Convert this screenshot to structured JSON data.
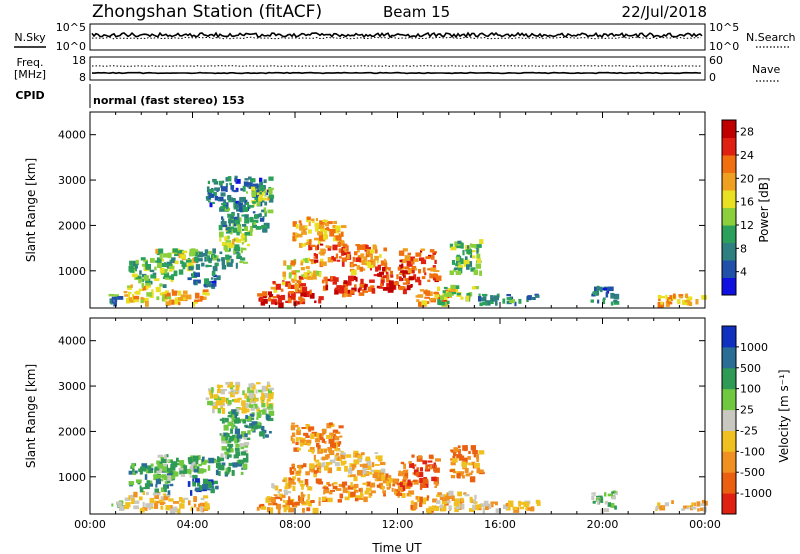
{
  "header": {
    "station": "Zhongshan Station (fitACF)",
    "beam": "Beam 15",
    "date": "22/Jul/2018",
    "cpid_label": "CPID",
    "cpid_text": "normal (fast stereo) 153"
  },
  "panels": {
    "nsky": {
      "label": "N.Sky",
      "ticks": [
        "10^5",
        "10^0"
      ]
    },
    "nsearch": {
      "label": "N.Search",
      "ticks": [
        "10^5",
        "10^0"
      ]
    },
    "freq": {
      "label": "Freq.",
      "unit": "[MHz]",
      "ticks": [
        "18",
        "8"
      ]
    },
    "nave": {
      "label": "Nave",
      "ticks": [
        "60",
        "0"
      ]
    }
  },
  "chart_data": [
    {
      "type": "heatmap",
      "name": "power",
      "xlabel": "",
      "ylabel": "Slant Range [km]",
      "xlim": [
        0,
        24
      ],
      "ylim": [
        180,
        4500
      ],
      "yticks": [
        1000,
        2000,
        3000,
        4000
      ],
      "colorbar": {
        "label": "Power [dB]",
        "ticks": [
          "4",
          "8",
          "12",
          "16",
          "20",
          "24",
          "28"
        ],
        "range": [
          0,
          30
        ]
      },
      "cells": [
        {
          "x0": 0.6,
          "x1": 1.3,
          "y0": 300,
          "y1": 500,
          "v": 8
        },
        {
          "x0": 1.3,
          "x1": 3.0,
          "y0": 300,
          "y1": 700,
          "v": 18
        },
        {
          "x0": 1.5,
          "x1": 3.2,
          "y0": 700,
          "y1": 1300,
          "v": 12
        },
        {
          "x0": 3.0,
          "x1": 4.5,
          "y0": 300,
          "y1": 600,
          "v": 20
        },
        {
          "x0": 2.5,
          "x1": 4.0,
          "y0": 1000,
          "y1": 1500,
          "v": 14
        },
        {
          "x0": 3.8,
          "x1": 5.0,
          "y0": 700,
          "y1": 1000,
          "v": 6
        },
        {
          "x0": 3.8,
          "x1": 6.0,
          "y0": 1100,
          "y1": 1500,
          "v": 10
        },
        {
          "x0": 5.0,
          "x1": 6.2,
          "y0": 1500,
          "y1": 2000,
          "v": 14
        },
        {
          "x0": 4.5,
          "x1": 7.0,
          "y0": 2500,
          "y1": 3100,
          "v": 6
        },
        {
          "x0": 6.0,
          "x1": 7.0,
          "y0": 2500,
          "y1": 2900,
          "v": 14
        },
        {
          "x0": 5.0,
          "x1": 7.0,
          "y0": 1900,
          "y1": 2500,
          "v": 8
        },
        {
          "x0": 6.5,
          "x1": 9.0,
          "y0": 300,
          "y1": 600,
          "v": 27
        },
        {
          "x0": 7.0,
          "x1": 8.5,
          "y0": 600,
          "y1": 900,
          "v": 22
        },
        {
          "x0": 7.5,
          "x1": 9.0,
          "y0": 900,
          "y1": 1300,
          "v": 18
        },
        {
          "x0": 7.8,
          "x1": 9.8,
          "y0": 1600,
          "y1": 2200,
          "v": 20
        },
        {
          "x0": 8.5,
          "x1": 10.0,
          "y0": 1200,
          "y1": 1600,
          "v": 24
        },
        {
          "x0": 9.0,
          "x1": 11.0,
          "y0": 500,
          "y1": 900,
          "v": 26
        },
        {
          "x0": 10.0,
          "x1": 11.5,
          "y0": 1000,
          "y1": 1600,
          "v": 22
        },
        {
          "x0": 11.0,
          "x1": 12.5,
          "y0": 600,
          "y1": 1100,
          "v": 27
        },
        {
          "x0": 12.0,
          "x1": 13.5,
          "y0": 800,
          "y1": 1500,
          "v": 25
        },
        {
          "x0": 12.5,
          "x1": 14.0,
          "y0": 300,
          "y1": 600,
          "v": 22
        },
        {
          "x0": 13.5,
          "x1": 15.0,
          "y0": 300,
          "y1": 700,
          "v": 14
        },
        {
          "x0": 14.0,
          "x1": 15.2,
          "y0": 1000,
          "y1": 1700,
          "v": 12
        },
        {
          "x0": 15.0,
          "x1": 17.5,
          "y0": 300,
          "y1": 500,
          "v": 7
        },
        {
          "x0": 19.5,
          "x1": 20.5,
          "y0": 300,
          "y1": 700,
          "v": 6
        },
        {
          "x0": 22.0,
          "x1": 24.0,
          "y0": 300,
          "y1": 500,
          "v": 20
        }
      ]
    },
    {
      "type": "heatmap",
      "name": "velocity",
      "xlabel": "Time UT",
      "ylabel": "Slant Range [km]",
      "xlim": [
        0,
        24
      ],
      "ylim": [
        180,
        4500
      ],
      "xticks": [
        "00:00",
        "04:00",
        "08:00",
        "12:00",
        "16:00",
        "20:00",
        "00:00"
      ],
      "yticks": [
        1000,
        2000,
        3000,
        4000
      ],
      "colorbar": {
        "label": "Velocity [m s⁻¹]",
        "ticks": [
          "1000",
          "500",
          "100",
          "25",
          "-25",
          "-100",
          "-500",
          "-1000"
        ]
      },
      "cells": [
        {
          "x0": 0.6,
          "x1": 1.3,
          "y0": 300,
          "y1": 500,
          "v": 3
        },
        {
          "x0": 1.3,
          "x1": 3.0,
          "y0": 300,
          "y1": 700,
          "v": 5
        },
        {
          "x0": 1.5,
          "x1": 3.2,
          "y0": 700,
          "y1": 1300,
          "v": 2
        },
        {
          "x0": 3.0,
          "x1": 4.5,
          "y0": 300,
          "y1": 600,
          "v": 5
        },
        {
          "x0": 2.5,
          "x1": 4.0,
          "y0": 1000,
          "y1": 1500,
          "v": 3
        },
        {
          "x0": 3.8,
          "x1": 5.0,
          "y0": 700,
          "y1": 1000,
          "v": 1
        },
        {
          "x0": 3.8,
          "x1": 6.0,
          "y0": 1100,
          "y1": 1500,
          "v": 2
        },
        {
          "x0": 5.0,
          "x1": 6.2,
          "y0": 1500,
          "y1": 2000,
          "v": 3
        },
        {
          "x0": 4.5,
          "x1": 7.0,
          "y0": 2500,
          "y1": 3100,
          "v": 4
        },
        {
          "x0": 6.0,
          "x1": 7.0,
          "y0": 2500,
          "y1": 2900,
          "v": 4
        },
        {
          "x0": 5.0,
          "x1": 7.0,
          "y0": 1900,
          "y1": 2500,
          "v": 2
        },
        {
          "x0": 6.5,
          "x1": 9.0,
          "y0": 300,
          "y1": 600,
          "v": 6
        },
        {
          "x0": 7.0,
          "x1": 8.5,
          "y0": 600,
          "y1": 900,
          "v": 5
        },
        {
          "x0": 7.5,
          "x1": 9.0,
          "y0": 900,
          "y1": 1300,
          "v": 6
        },
        {
          "x0": 7.8,
          "x1": 9.8,
          "y0": 1600,
          "y1": 2200,
          "v": 6
        },
        {
          "x0": 8.5,
          "x1": 10.0,
          "y0": 1200,
          "y1": 1600,
          "v": 5
        },
        {
          "x0": 9.0,
          "x1": 11.0,
          "y0": 500,
          "y1": 900,
          "v": 6
        },
        {
          "x0": 10.0,
          "x1": 11.5,
          "y0": 1000,
          "y1": 1600,
          "v": 5
        },
        {
          "x0": 11.0,
          "x1": 12.5,
          "y0": 600,
          "y1": 1100,
          "v": 6
        },
        {
          "x0": 12.0,
          "x1": 13.5,
          "y0": 800,
          "y1": 1500,
          "v": 7
        },
        {
          "x0": 12.5,
          "x1": 14.0,
          "y0": 300,
          "y1": 600,
          "v": 6
        },
        {
          "x0": 13.5,
          "x1": 15.0,
          "y0": 300,
          "y1": 700,
          "v": 5
        },
        {
          "x0": 14.0,
          "x1": 15.2,
          "y0": 1000,
          "y1": 1700,
          "v": 6
        },
        {
          "x0": 15.0,
          "x1": 17.5,
          "y0": 300,
          "y1": 500,
          "v": 5
        },
        {
          "x0": 19.5,
          "x1": 20.5,
          "y0": 300,
          "y1": 700,
          "v": 3
        },
        {
          "x0": 22.0,
          "x1": 24.0,
          "y0": 300,
          "y1": 500,
          "v": 5
        }
      ]
    }
  ],
  "colors": {
    "power_scale": [
      "#1010e0",
      "#2050a8",
      "#2e7f7f",
      "#2aa05a",
      "#8ccf3c",
      "#e8e020",
      "#f0a020",
      "#f07010",
      "#e02010",
      "#c00000"
    ],
    "velocity_scale": [
      "#1030c0",
      "#2a6e96",
      "#2e9a55",
      "#70c840",
      "#c8c8c0",
      "#f0c020",
      "#f09020",
      "#ea6010",
      "#e02010"
    ]
  }
}
